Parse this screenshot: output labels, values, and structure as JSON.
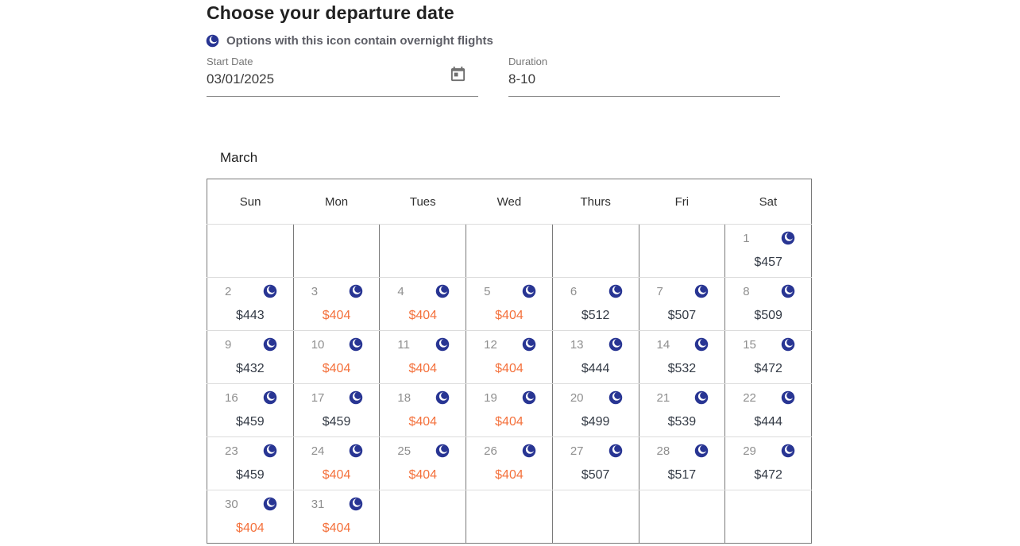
{
  "page": {
    "title": "Choose your departure date"
  },
  "legend": {
    "icon": "overnight-moon-icon",
    "text": "Options with this icon contain overnight flights"
  },
  "fields": {
    "start_date": {
      "label": "Start Date",
      "value": "03/01/2025",
      "icon": "calendar-icon"
    },
    "duration": {
      "label": "Duration",
      "value": "8-10"
    }
  },
  "calendar": {
    "month": "March",
    "day_headers": [
      "Sun",
      "Mon",
      "Tues",
      "Wed",
      "Thurs",
      "Fri",
      "Sat"
    ],
    "weeks": [
      [
        null,
        null,
        null,
        null,
        null,
        null,
        {
          "day": "1",
          "price": "$457",
          "deal": false,
          "overnight": true
        }
      ],
      [
        {
          "day": "2",
          "price": "$443",
          "deal": false,
          "overnight": true
        },
        {
          "day": "3",
          "price": "$404",
          "deal": true,
          "overnight": true
        },
        {
          "day": "4",
          "price": "$404",
          "deal": true,
          "overnight": true
        },
        {
          "day": "5",
          "price": "$404",
          "deal": true,
          "overnight": true
        },
        {
          "day": "6",
          "price": "$512",
          "deal": false,
          "overnight": true
        },
        {
          "day": "7",
          "price": "$507",
          "deal": false,
          "overnight": true
        },
        {
          "day": "8",
          "price": "$509",
          "deal": false,
          "overnight": true
        }
      ],
      [
        {
          "day": "9",
          "price": "$432",
          "deal": false,
          "overnight": true
        },
        {
          "day": "10",
          "price": "$404",
          "deal": true,
          "overnight": true
        },
        {
          "day": "11",
          "price": "$404",
          "deal": true,
          "overnight": true
        },
        {
          "day": "12",
          "price": "$404",
          "deal": true,
          "overnight": true
        },
        {
          "day": "13",
          "price": "$444",
          "deal": false,
          "overnight": true
        },
        {
          "day": "14",
          "price": "$532",
          "deal": false,
          "overnight": true
        },
        {
          "day": "15",
          "price": "$472",
          "deal": false,
          "overnight": true
        }
      ],
      [
        {
          "day": "16",
          "price": "$459",
          "deal": false,
          "overnight": true
        },
        {
          "day": "17",
          "price": "$459",
          "deal": false,
          "overnight": true
        },
        {
          "day": "18",
          "price": "$404",
          "deal": true,
          "overnight": true
        },
        {
          "day": "19",
          "price": "$404",
          "deal": true,
          "overnight": true
        },
        {
          "day": "20",
          "price": "$499",
          "deal": false,
          "overnight": true
        },
        {
          "day": "21",
          "price": "$539",
          "deal": false,
          "overnight": true
        },
        {
          "day": "22",
          "price": "$444",
          "deal": false,
          "overnight": true
        }
      ],
      [
        {
          "day": "23",
          "price": "$459",
          "deal": false,
          "overnight": true
        },
        {
          "day": "24",
          "price": "$404",
          "deal": true,
          "overnight": true
        },
        {
          "day": "25",
          "price": "$404",
          "deal": true,
          "overnight": true
        },
        {
          "day": "26",
          "price": "$404",
          "deal": true,
          "overnight": true
        },
        {
          "day": "27",
          "price": "$507",
          "deal": false,
          "overnight": true
        },
        {
          "day": "28",
          "price": "$517",
          "deal": false,
          "overnight": true
        },
        {
          "day": "29",
          "price": "$472",
          "deal": false,
          "overnight": true
        }
      ],
      [
        {
          "day": "30",
          "price": "$404",
          "deal": true,
          "overnight": true
        },
        {
          "day": "31",
          "price": "$404",
          "deal": true,
          "overnight": true
        },
        null,
        null,
        null,
        null,
        null
      ]
    ]
  },
  "colors": {
    "moon_icon": "#283593",
    "deal_price": "#f4713c",
    "regular_price": "#333a45",
    "grid_vertical_border": "#7a7a7a",
    "grid_horizontal_border": "#dcdcdc"
  }
}
